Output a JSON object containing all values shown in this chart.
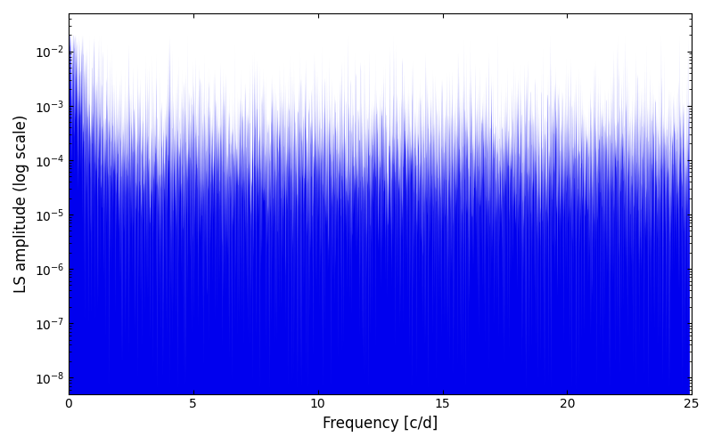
{
  "xlabel": "Frequency [c/d]",
  "ylabel": "LS amplitude (log scale)",
  "xlim": [
    0,
    25
  ],
  "ylim": [
    5e-09,
    0.05
  ],
  "yticks": [
    1e-08,
    1e-07,
    1e-06,
    1e-05,
    0.0001,
    0.001,
    0.01
  ],
  "xticks": [
    0,
    5,
    10,
    15,
    20,
    25
  ],
  "line_color": "#0000ee",
  "line_width": 0.5,
  "bg_color": "#ffffff",
  "seed": 12345,
  "n_points": 8000,
  "freq_max": 24.9
}
